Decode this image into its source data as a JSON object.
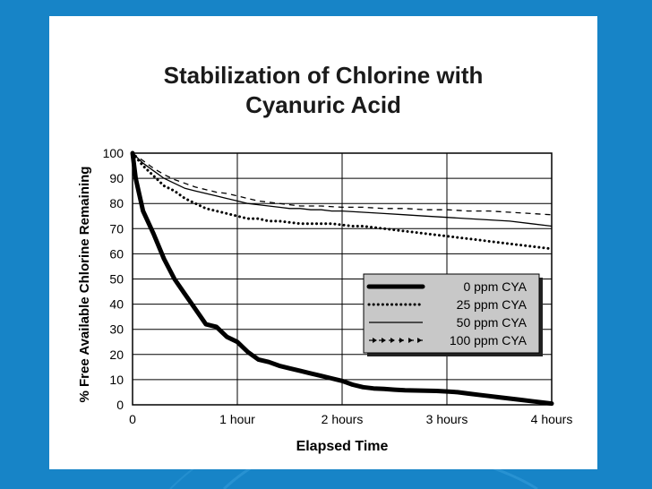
{
  "colors": {
    "background": "#1784c7",
    "card": "#ffffff",
    "legend_fill": "#c8c8c8"
  },
  "chart_data": {
    "type": "line",
    "title_line1": "Stabilization of Chlorine with",
    "title_line2": "Cyanuric Acid",
    "xlabel": "Elapsed Time",
    "ylabel": "% Free Available Chlorine Remaining",
    "xlim": [
      0,
      4
    ],
    "ylim": [
      0,
      100
    ],
    "x_ticks": [
      {
        "value": 0,
        "label": "0"
      },
      {
        "value": 1,
        "label": "1 hour"
      },
      {
        "value": 2,
        "label": "2 hours"
      },
      {
        "value": 3,
        "label": "3 hours"
      },
      {
        "value": 4,
        "label": "4 hours"
      }
    ],
    "y_ticks": [
      {
        "value": 0,
        "label": "0"
      },
      {
        "value": 10,
        "label": "10"
      },
      {
        "value": 20,
        "label": "20"
      },
      {
        "value": 30,
        "label": "30"
      },
      {
        "value": 40,
        "label": "40"
      },
      {
        "value": 50,
        "label": "50"
      },
      {
        "value": 60,
        "label": "60"
      },
      {
        "value": 70,
        "label": "70"
      },
      {
        "value": 80,
        "label": "80"
      },
      {
        "value": 90,
        "label": "90"
      },
      {
        "value": 100,
        "label": "100"
      }
    ],
    "grid": true,
    "legend_position": "right",
    "series": [
      {
        "name": "0 ppm CYA",
        "style": "thick",
        "x": [
          0,
          0.03,
          0.1,
          0.2,
          0.3,
          0.4,
          0.5,
          0.6,
          0.7,
          0.8,
          0.9,
          1.0,
          1.1,
          1.2,
          1.3,
          1.4,
          1.5,
          1.6,
          1.7,
          1.8,
          1.9,
          2.0,
          2.1,
          2.2,
          2.3,
          2.4,
          2.5,
          2.6,
          2.7,
          2.8,
          2.9,
          3.0,
          3.1,
          3.2,
          3.3,
          3.4,
          3.5,
          3.6,
          3.7,
          3.8,
          3.9,
          4.0
        ],
        "y": [
          100,
          90,
          77,
          68,
          58,
          50,
          44,
          38,
          32,
          31,
          27,
          25,
          21,
          18,
          17,
          15.5,
          14.5,
          13.5,
          12.5,
          11.5,
          10.5,
          9.5,
          8,
          7,
          6.5,
          6.3,
          6,
          5.8,
          5.7,
          5.6,
          5.5,
          5.3,
          5,
          4.5,
          4,
          3.5,
          3,
          2.5,
          2,
          1.5,
          1,
          0.5
        ]
      },
      {
        "name": "25 ppm CYA",
        "style": "dotted",
        "x": [
          0,
          0.1,
          0.2,
          0.3,
          0.4,
          0.5,
          0.6,
          0.7,
          0.8,
          0.9,
          1.0,
          1.1,
          1.2,
          1.3,
          1.4,
          1.5,
          1.6,
          1.7,
          1.8,
          1.9,
          2.0,
          2.1,
          2.2,
          2.3,
          2.4,
          2.5,
          2.6,
          2.7,
          2.8,
          2.9,
          3.0,
          3.1,
          3.2,
          3.3,
          3.4,
          3.5,
          3.6,
          3.7,
          3.8,
          3.9,
          4.0
        ],
        "y": [
          100,
          95,
          91,
          87,
          85,
          82,
          80,
          78,
          77,
          76,
          75,
          74,
          74,
          73,
          73,
          72.5,
          72,
          72,
          72,
          72,
          71.5,
          71,
          71,
          70.5,
          70,
          69.5,
          69,
          68.5,
          68,
          67.5,
          67,
          66.5,
          66,
          65.5,
          65,
          64.5,
          64,
          63.5,
          63,
          62.5,
          62
        ]
      },
      {
        "name": "50 ppm CYA",
        "style": "solid",
        "x": [
          0,
          0.1,
          0.2,
          0.3,
          0.4,
          0.5,
          0.6,
          0.7,
          0.8,
          0.9,
          1.0,
          1.1,
          1.2,
          1.3,
          1.4,
          1.5,
          1.6,
          1.7,
          1.8,
          1.9,
          2.0,
          2.2,
          2.4,
          2.6,
          2.8,
          3.0,
          3.2,
          3.4,
          3.6,
          3.8,
          4.0
        ],
        "y": [
          100,
          96,
          93,
          90,
          88,
          86,
          85,
          84,
          83,
          82,
          81,
          80,
          79.5,
          79,
          78.5,
          78,
          78,
          77.5,
          77.5,
          77,
          77,
          76.5,
          76,
          75.5,
          75,
          74.5,
          74,
          73.5,
          73,
          72,
          71
        ]
      },
      {
        "name": "100 ppm CYA",
        "style": "dashed-arrow",
        "x": [
          0,
          0.1,
          0.2,
          0.3,
          0.4,
          0.5,
          0.6,
          0.7,
          0.8,
          0.9,
          1.0,
          1.1,
          1.2,
          1.3,
          1.4,
          1.5,
          1.6,
          1.8,
          2.0,
          2.2,
          2.4,
          2.6,
          2.8,
          3.0,
          3.2,
          3.4,
          3.6,
          3.8,
          4.0
        ],
        "y": [
          100,
          97,
          94,
          91.5,
          89.5,
          88,
          86.5,
          85.5,
          84.5,
          84,
          83,
          82,
          81,
          80.5,
          80,
          79.5,
          79,
          79,
          78.5,
          78.5,
          78,
          78,
          77.5,
          77.5,
          77,
          77,
          76.5,
          76,
          75.5
        ]
      }
    ]
  }
}
